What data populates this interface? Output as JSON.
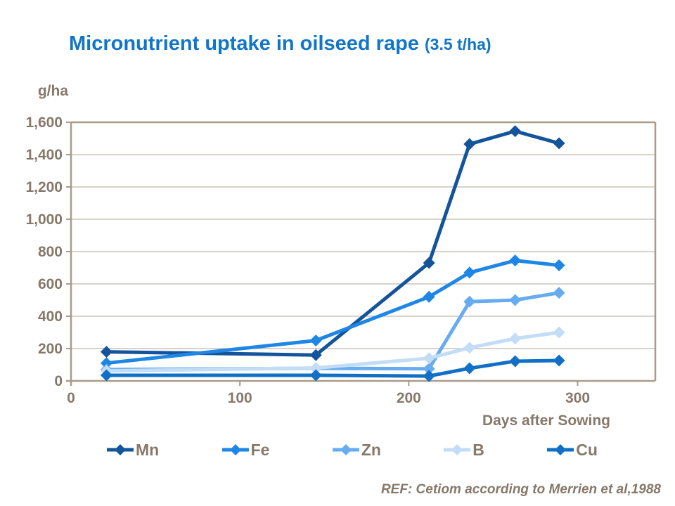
{
  "title": {
    "main": "Micronutrient uptake in oilseed rape ",
    "suffix": "(3.5 t/ha)"
  },
  "footer": {
    "ref": "REF: Cetiom according to Merrien et al,1988"
  },
  "colors": {
    "title_blue": "#1175C8",
    "axis_text": "#86786A",
    "gridline": "#C0B6A8",
    "frame": "#A99B89",
    "series_mn": "#14549A",
    "series_fe": "#1E86E4",
    "series_zn": "#66ACF0",
    "series_b": "#C3DDF6",
    "series_cu": "#1170C5"
  },
  "chart_data": {
    "type": "line",
    "title": "Micronutrient uptake in oilseed rape (3.5 t/ha)",
    "ylabel": "g/ha",
    "xlabel": "Days after Sowing",
    "xlim": [
      0,
      346
    ],
    "ylim": [
      0,
      1600
    ],
    "x_ticks": [
      0,
      100,
      200,
      300
    ],
    "y_ticks": [
      0,
      200,
      400,
      600,
      800,
      1000,
      1200,
      1400,
      1600
    ],
    "y_tick_labels": [
      "0",
      "200",
      "400",
      "600",
      "800",
      "1,000",
      "1,200",
      "1,400",
      "1,600"
    ],
    "grid": true,
    "legend_position": "bottom",
    "marker": "diamond",
    "x": [
      21,
      145,
      212,
      236,
      263,
      289
    ],
    "series": [
      {
        "name": "Mn",
        "color": "#14549A",
        "values": [
          180,
          160,
          730,
          1465,
          1545,
          1470
        ]
      },
      {
        "name": "Fe",
        "color": "#1E86E4",
        "values": [
          110,
          250,
          520,
          670,
          745,
          715
        ]
      },
      {
        "name": "Zn",
        "color": "#66ACF0",
        "values": [
          70,
          78,
          75,
          490,
          500,
          545
        ]
      },
      {
        "name": "B",
        "color": "#C3DDF6",
        "values": [
          62,
          80,
          140,
          205,
          262,
          300
        ]
      },
      {
        "name": "Cu",
        "color": "#1170C5",
        "values": [
          35,
          35,
          30,
          78,
          122,
          126
        ]
      }
    ]
  }
}
